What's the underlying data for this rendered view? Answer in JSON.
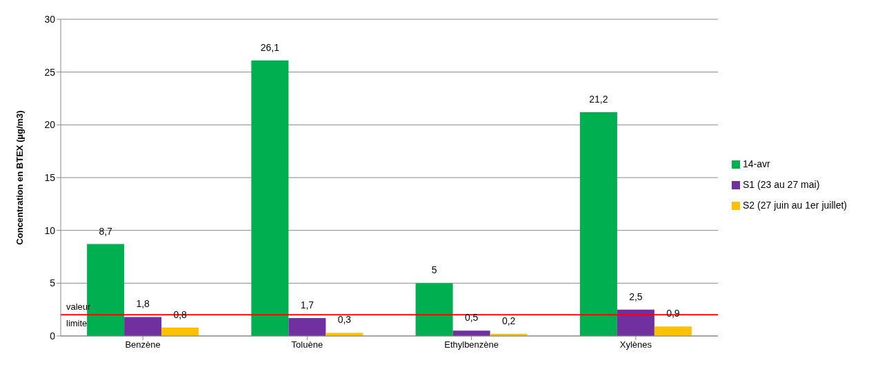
{
  "chart_data": {
    "type": "bar",
    "ylabel": "Concentration en BTEX (µg/m3)",
    "categories": [
      "Benzène",
      "Toluène",
      "Ethylbenzène",
      "Xylènes"
    ],
    "series": [
      {
        "name": "14-avr",
        "color": "#00b050",
        "values": [
          8.7,
          26.1,
          5,
          21.2
        ],
        "value_labels": [
          "8,7",
          "26,1",
          "5",
          "21,2"
        ]
      },
      {
        "name": "S1 (23 au 27 mai)",
        "color": "#7030a0",
        "values": [
          1.8,
          1.7,
          0.5,
          2.5
        ],
        "value_labels": [
          "1,8",
          "1,7",
          "0,5",
          "2,5"
        ]
      },
      {
        "name": "S2 (27 juin au 1er juillet)",
        "color": "#ffc000",
        "values": [
          0.8,
          0.3,
          0.2,
          0.9
        ],
        "value_labels": [
          "0,8",
          "0,3",
          "0,2",
          "0,9"
        ]
      }
    ],
    "ylim": [
      0,
      30
    ],
    "yticks": [
      0,
      5,
      10,
      15,
      20,
      25,
      30
    ],
    "grid": "y",
    "legend": "right",
    "ref_lines": [
      {
        "axis": "y",
        "value": 2,
        "label": "valeur limite",
        "color": "#ff0000"
      }
    ]
  }
}
